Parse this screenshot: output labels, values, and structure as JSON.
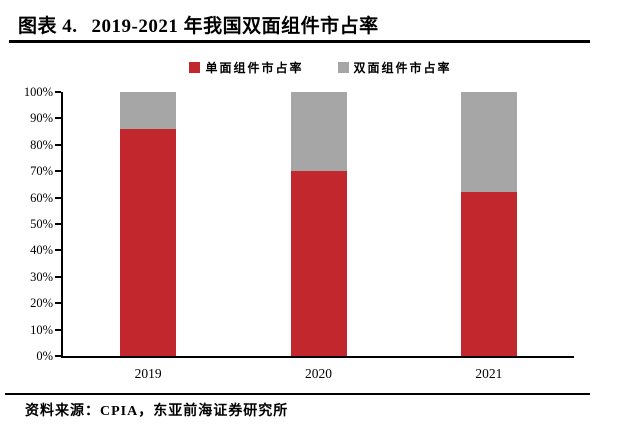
{
  "header": {
    "figure_label": "图表 4.",
    "title": "2019-2021 年我国双面组件市占率"
  },
  "footer": {
    "source": "资料来源：CPIA，东亚前海证券研究所"
  },
  "chart_data": {
    "type": "bar",
    "stacked": true,
    "title": "2019-2021 年我国双面组件市占率",
    "categories": [
      "2019",
      "2020",
      "2021"
    ],
    "series": [
      {
        "name": "单面组件市占率",
        "color": "#C2272E",
        "values": [
          86,
          70,
          62
        ]
      },
      {
        "name": "双面组件市占率",
        "color": "#A6A6A6",
        "values": [
          14,
          30,
          38
        ]
      }
    ],
    "unit": "%",
    "ylim": [
      0,
      100
    ],
    "y_ticks": [
      "0%",
      "10%",
      "20%",
      "30%",
      "40%",
      "50%",
      "60%",
      "70%",
      "80%",
      "90%",
      "100%"
    ],
    "xlabel": "",
    "ylabel": "",
    "grid": false,
    "legend_position": "top"
  }
}
